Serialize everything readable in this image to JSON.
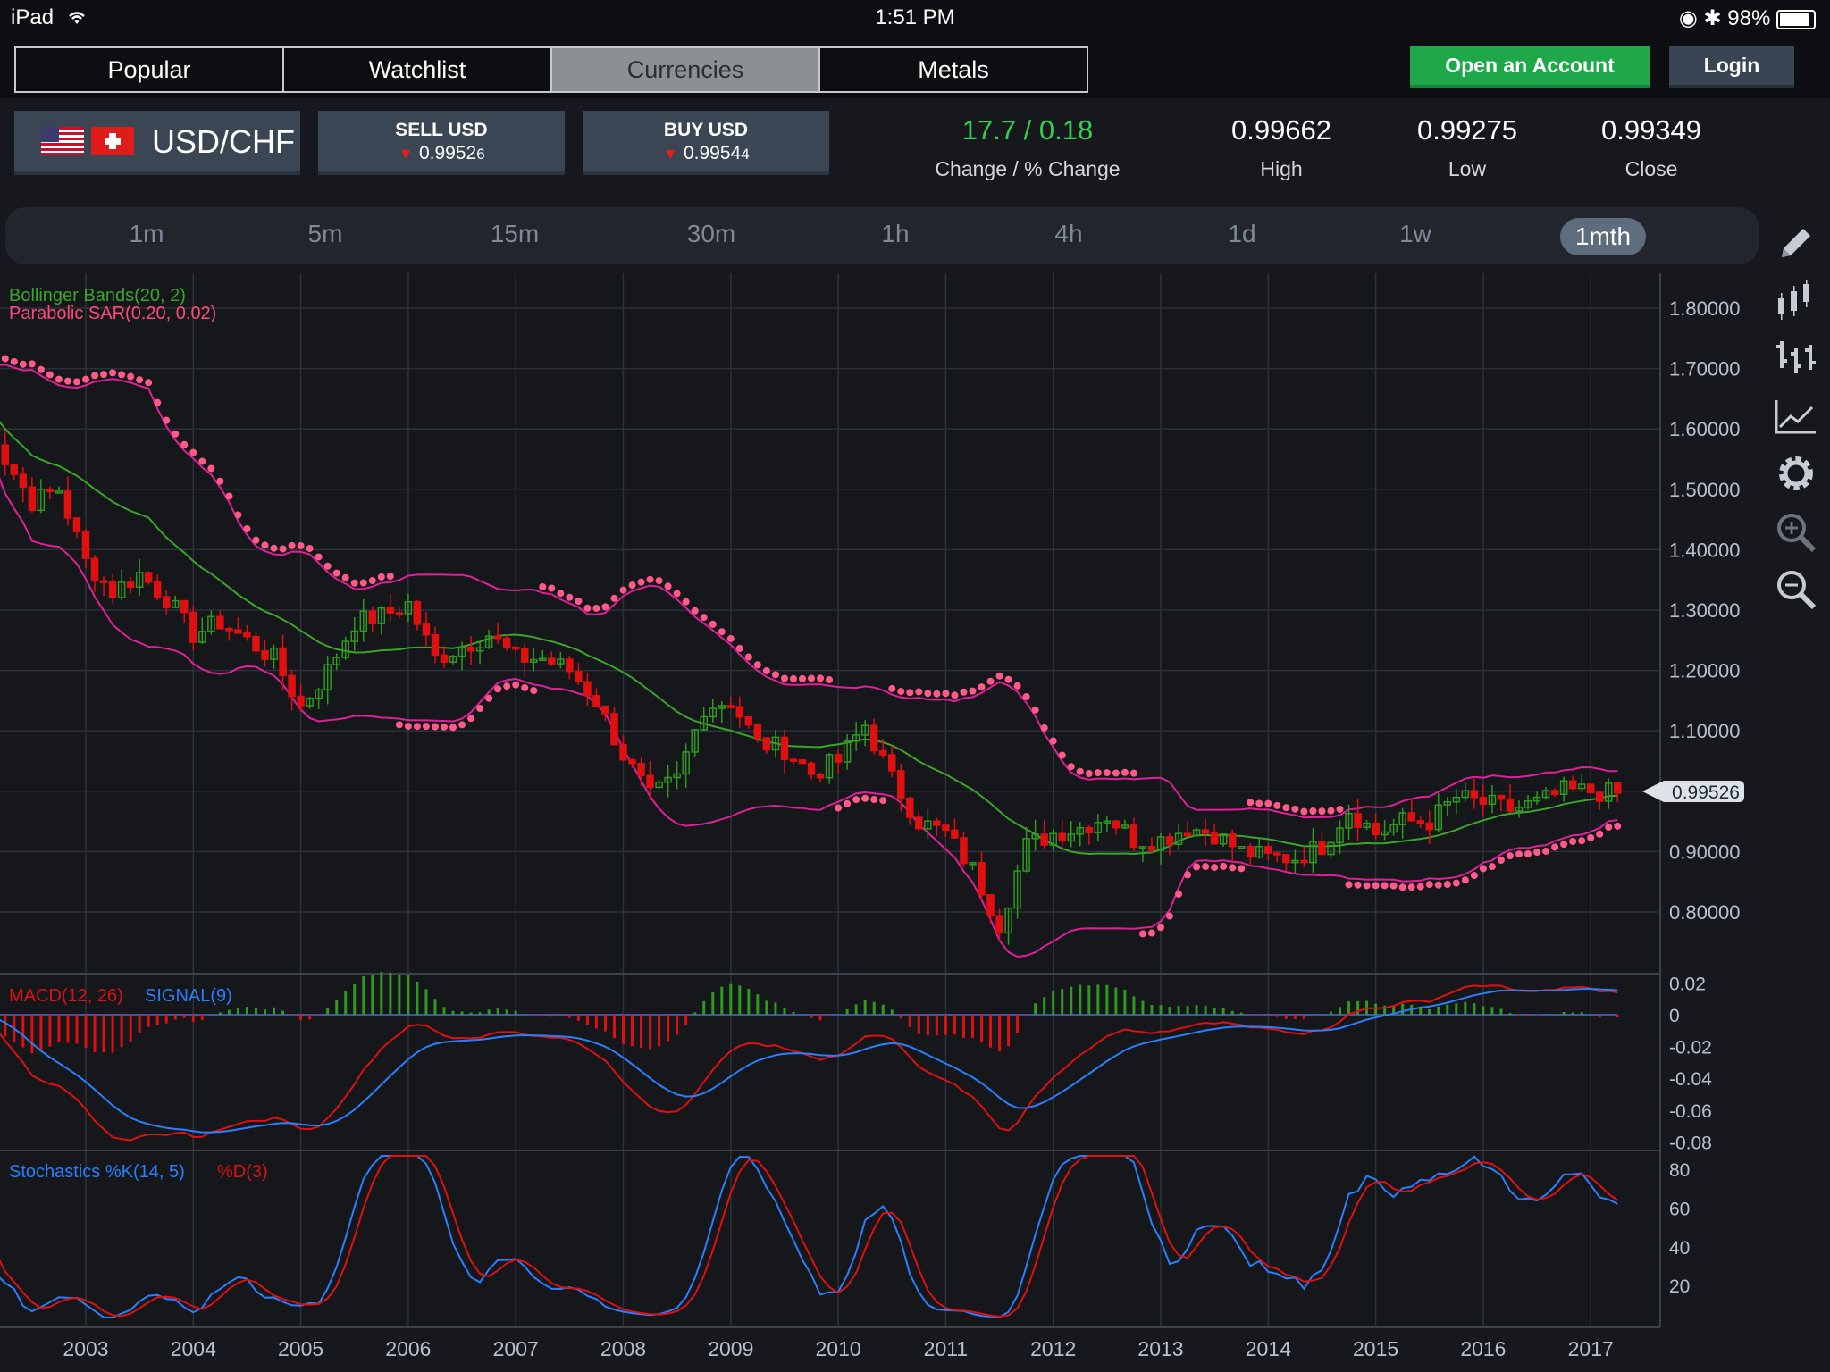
{
  "status_bar": {
    "device": "iPad",
    "time": "1:51 PM",
    "battery": "98%"
  },
  "nav": {
    "tabs": [
      {
        "label": "Popular",
        "active": false
      },
      {
        "label": "Watchlist",
        "active": false
      },
      {
        "label": "Currencies",
        "active": true
      },
      {
        "label": "Metals",
        "active": false
      }
    ],
    "open_account": "Open an Account",
    "login": "Login"
  },
  "quote": {
    "pair": "USD/CHF",
    "sell": {
      "label": "SELL USD",
      "price_main": "0.9952",
      "price_small": "6"
    },
    "buy": {
      "label": "BUY USD",
      "price_main": "0.9954",
      "price_small": "4"
    },
    "change": {
      "value": "17.7 / 0.18",
      "label": "Change / % Change"
    },
    "high": {
      "value": "0.99662",
      "label": "High"
    },
    "low": {
      "value": "0.99275",
      "label": "Low"
    },
    "close": {
      "value": "0.99349",
      "label": "Close"
    }
  },
  "timeframes": [
    "1m",
    "5m",
    "15m",
    "30m",
    "1h",
    "4h",
    "1d",
    "1w",
    "1mth"
  ],
  "active_timeframe": "1mth",
  "toolbar_icons": [
    "pencil-icon",
    "candlestick-icon",
    "bar-chart-icon",
    "line-chart-icon",
    "gear-icon",
    "zoom-in-icon",
    "zoom-out-icon"
  ],
  "colors": {
    "up": "#2e9a1e",
    "down": "#e01010",
    "bollinger_band": "#e0209a",
    "bollinger_mid": "#3ba52a",
    "sar": "#ff5a8a",
    "macd": "#e01010",
    "signal": "#2a7fff",
    "accent_green": "#1fa84a"
  },
  "chart_data": {
    "type": "candlestick",
    "years": [
      "2003",
      "2004",
      "2005",
      "2006",
      "2007",
      "2008",
      "2009",
      "2010",
      "2011",
      "2012",
      "2013",
      "2014",
      "2015",
      "2016",
      "2017"
    ],
    "price_axis": [
      "1.80000",
      "1.70000",
      "1.60000",
      "1.50000",
      "1.40000",
      "1.30000",
      "1.20000",
      "1.10000",
      "1.00000",
      "0.90000",
      "0.80000"
    ],
    "ylim": [
      0.77,
      1.83
    ],
    "current_price": "0.99526",
    "indicators": {
      "bollinger": "Bollinger Bands(20, 2)",
      "sar": "Parabolic SAR(0.20, 0.02)",
      "macd": "MACD(12, 26)",
      "signal": "SIGNAL(9)",
      "stoch_k": "Stochastics %K(14, 5)",
      "stoch_d": "%D(3)"
    },
    "macd_axis": [
      "0.02",
      "0",
      "-0.02",
      "-0.04",
      "-0.06",
      "-0.08"
    ],
    "stoch_axis": [
      "80",
      "60",
      "40",
      "20"
    ],
    "close_series": [
      {
        "t": 2002.0,
        "v": 1.66
      },
      {
        "t": 2002.25,
        "v": 1.55
      },
      {
        "t": 2002.5,
        "v": 1.48
      },
      {
        "t": 2002.75,
        "v": 1.5
      },
      {
        "t": 2003.0,
        "v": 1.38
      },
      {
        "t": 2003.25,
        "v": 1.33
      },
      {
        "t": 2003.5,
        "v": 1.36
      },
      {
        "t": 2003.75,
        "v": 1.32
      },
      {
        "t": 2004.0,
        "v": 1.26
      },
      {
        "t": 2004.25,
        "v": 1.28
      },
      {
        "t": 2004.5,
        "v": 1.25
      },
      {
        "t": 2004.75,
        "v": 1.22
      },
      {
        "t": 2005.0,
        "v": 1.14
      },
      {
        "t": 2005.25,
        "v": 1.2
      },
      {
        "t": 2005.5,
        "v": 1.28
      },
      {
        "t": 2005.75,
        "v": 1.29
      },
      {
        "t": 2006.0,
        "v": 1.31
      },
      {
        "t": 2006.25,
        "v": 1.22
      },
      {
        "t": 2006.5,
        "v": 1.24
      },
      {
        "t": 2006.75,
        "v": 1.26
      },
      {
        "t": 2007.0,
        "v": 1.22
      },
      {
        "t": 2007.25,
        "v": 1.22
      },
      {
        "t": 2007.5,
        "v": 1.2
      },
      {
        "t": 2007.75,
        "v": 1.15
      },
      {
        "t": 2008.0,
        "v": 1.06
      },
      {
        "t": 2008.25,
        "v": 0.99
      },
      {
        "t": 2008.5,
        "v": 1.02
      },
      {
        "t": 2008.75,
        "v": 1.14
      },
      {
        "t": 2009.0,
        "v": 1.15
      },
      {
        "t": 2009.25,
        "v": 1.08
      },
      {
        "t": 2009.5,
        "v": 1.07
      },
      {
        "t": 2009.75,
        "v": 1.03
      },
      {
        "t": 2010.0,
        "v": 1.05
      },
      {
        "t": 2010.25,
        "v": 1.11
      },
      {
        "t": 2010.5,
        "v": 1.02
      },
      {
        "t": 2010.75,
        "v": 0.95
      },
      {
        "t": 2011.0,
        "v": 0.93
      },
      {
        "t": 2011.25,
        "v": 0.87
      },
      {
        "t": 2011.5,
        "v": 0.78
      },
      {
        "t": 2011.75,
        "v": 0.91
      },
      {
        "t": 2012.0,
        "v": 0.93
      },
      {
        "t": 2012.25,
        "v": 0.94
      },
      {
        "t": 2012.5,
        "v": 0.96
      },
      {
        "t": 2012.75,
        "v": 0.92
      },
      {
        "t": 2013.0,
        "v": 0.92
      },
      {
        "t": 2013.25,
        "v": 0.94
      },
      {
        "t": 2013.5,
        "v": 0.93
      },
      {
        "t": 2013.75,
        "v": 0.9
      },
      {
        "t": 2014.0,
        "v": 0.89
      },
      {
        "t": 2014.25,
        "v": 0.89
      },
      {
        "t": 2014.5,
        "v": 0.91
      },
      {
        "t": 2014.75,
        "v": 0.97
      },
      {
        "t": 2015.0,
        "v": 0.93
      },
      {
        "t": 2015.25,
        "v": 0.95
      },
      {
        "t": 2015.5,
        "v": 0.95
      },
      {
        "t": 2015.75,
        "v": 0.99
      },
      {
        "t": 2016.0,
        "v": 0.98
      },
      {
        "t": 2016.25,
        "v": 0.97
      },
      {
        "t": 2016.5,
        "v": 0.98
      },
      {
        "t": 2016.75,
        "v": 1.0
      },
      {
        "t": 2017.0,
        "v": 1.0
      },
      {
        "t": 2017.25,
        "v": 0.995
      }
    ]
  }
}
